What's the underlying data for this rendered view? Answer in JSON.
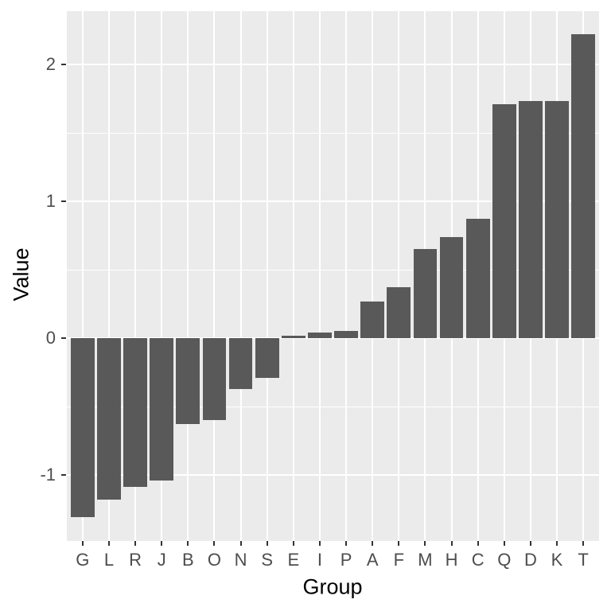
{
  "chart_data": {
    "type": "bar",
    "title": "",
    "xlabel": "Group",
    "ylabel": "Value",
    "categories": [
      "G",
      "L",
      "R",
      "J",
      "B",
      "O",
      "N",
      "S",
      "E",
      "I",
      "P",
      "A",
      "F",
      "M",
      "H",
      "C",
      "Q",
      "D",
      "K",
      "T"
    ],
    "values": [
      -1.31,
      -1.18,
      -1.09,
      -1.04,
      -0.63,
      -0.6,
      -0.37,
      -0.29,
      0.02,
      0.04,
      0.05,
      0.27,
      0.37,
      0.65,
      0.74,
      0.87,
      1.71,
      1.73,
      1.73,
      2.22
    ],
    "y_axis": {
      "tick_values": [
        -1,
        0,
        1,
        2
      ],
      "tick_labels": [
        "-1",
        "0",
        "1",
        "2"
      ],
      "minor_tick_values": [
        -0.5,
        0.5,
        1.5
      ],
      "ylim": [
        -1.49,
        2.4
      ]
    },
    "x_axis": {
      "tick_labels": [
        "G",
        "L",
        "R",
        "J",
        "B",
        "O",
        "N",
        "S",
        "E",
        "I",
        "P",
        "A",
        "F",
        "M",
        "H",
        "C",
        "Q",
        "D",
        "K",
        "T"
      ]
    },
    "legend_position": "none",
    "grid": true,
    "colors": {
      "bar_fill": "#595959",
      "panel_background": "#EBEBEB",
      "grid": "#FFFFFF",
      "tick_text": "#4D4D4D",
      "axis_title": "#000000",
      "tick_mark": "#333333"
    }
  }
}
